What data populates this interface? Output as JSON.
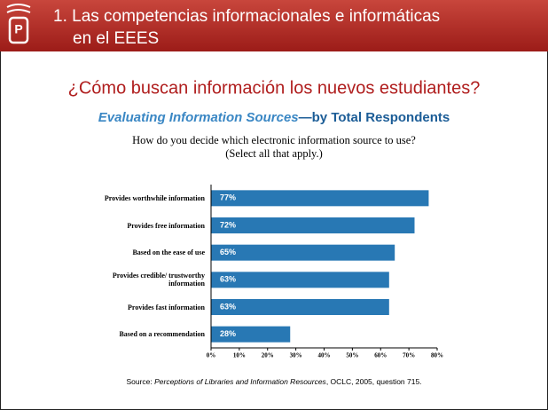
{
  "header": {
    "title_lines": [
      "1. Las competencias informacionales e informáticas",
      "en el EEES"
    ]
  },
  "heading": "¿Cómo buscan información los nuevos estudiantes?",
  "chart_data": {
    "type": "hbar",
    "title": "Evaluating Information Sources",
    "title_suffix": "—by Total Respondents",
    "subtitle": [
      "How do you decide which electronic information source to use?",
      "(Select all that apply.)"
    ],
    "categories": [
      "Provides worthwhile information",
      "Provides free information",
      "Based on the ease of use",
      "Provides credible/ trustworthy information",
      "Provides fast information",
      "Based on a recommendation"
    ],
    "values": [
      77,
      72,
      65,
      63,
      63,
      28
    ],
    "value_labels": [
      "77%",
      "72%",
      "65%",
      "63%",
      "63%",
      "28%"
    ],
    "color": "#2878b4",
    "xlim": [
      0,
      80
    ],
    "xticks": [
      {
        "value": 0,
        "label": "0%"
      },
      {
        "value": 10,
        "label": "10%"
      },
      {
        "value": 20,
        "label": "20%"
      },
      {
        "value": 30,
        "label": "30%"
      },
      {
        "value": 40,
        "label": "40%"
      },
      {
        "value": 50,
        "label": "50%"
      },
      {
        "value": 60,
        "label": "60%"
      },
      {
        "value": 70,
        "label": "70%"
      },
      {
        "value": 80,
        "label": "80%"
      }
    ],
    "source": [
      "Source: ",
      "Perceptions of Libraries and Information Resources",
      ", OCLC, 2005, question 715."
    ]
  }
}
